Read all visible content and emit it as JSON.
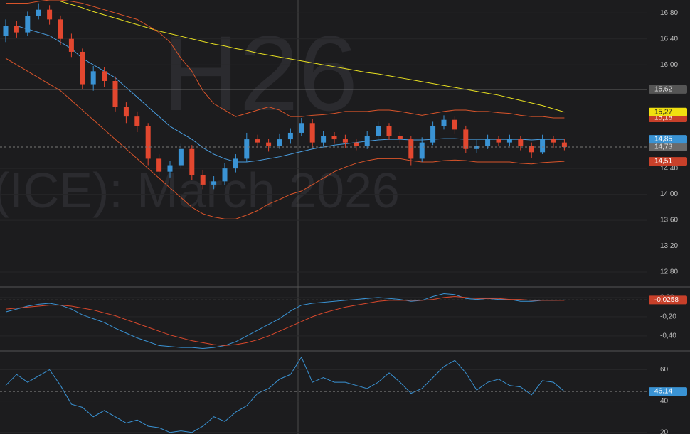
{
  "chart_data": [
    {
      "type": "candlestick",
      "watermark": [
        "H26",
        "(ICE): March 2026"
      ],
      "ylim": [
        12.57,
        17.0
      ],
      "yticks": [
        {
          "value": 12.8,
          "label": "12,80"
        },
        {
          "value": 13.2,
          "label": "13,20"
        },
        {
          "value": 13.6,
          "label": "13,60"
        },
        {
          "value": 14.0,
          "label": "14,00"
        },
        {
          "value": 14.4,
          "label": "14,40"
        },
        {
          "value": 16.0,
          "label": "16,00"
        },
        {
          "value": 16.4,
          "label": "16,40"
        },
        {
          "value": 16.8,
          "label": "16,80"
        }
      ],
      "up_color": "#3a93d4",
      "down_color": "#e2472f",
      "open": [
        16.45,
        16.6,
        16.5,
        16.75,
        16.85,
        16.7,
        16.4,
        16.2,
        15.7,
        15.9,
        15.75,
        15.35,
        15.2,
        15.05,
        14.55,
        14.35,
        14.45,
        14.7,
        14.3,
        14.15,
        14.2,
        14.4,
        14.55,
        14.85,
        14.8,
        14.75,
        14.85,
        14.95,
        15.1,
        14.8,
        14.9,
        14.85,
        14.8,
        14.75,
        14.9,
        15.05,
        14.9,
        14.85,
        14.55,
        14.8,
        15.05,
        15.15,
        15.0,
        14.7,
        14.75,
        14.85,
        14.8,
        14.85,
        14.75,
        14.65,
        14.85,
        14.8
      ],
      "high": [
        16.7,
        16.68,
        16.82,
        16.95,
        16.92,
        16.76,
        16.48,
        16.25,
        15.98,
        15.96,
        15.82,
        15.42,
        15.28,
        15.1,
        14.62,
        14.52,
        14.78,
        14.76,
        14.38,
        14.28,
        14.48,
        14.62,
        14.95,
        14.92,
        14.86,
        14.94,
        15.02,
        15.18,
        15.16,
        14.98,
        14.96,
        14.92,
        14.86,
        14.98,
        15.12,
        15.1,
        14.96,
        14.9,
        14.88,
        15.12,
        15.22,
        15.2,
        15.06,
        14.84,
        14.92,
        14.9,
        14.92,
        14.9,
        14.8,
        14.92,
        14.9,
        14.86
      ],
      "low": [
        16.35,
        16.42,
        16.45,
        16.7,
        16.62,
        16.3,
        16.12,
        15.62,
        15.6,
        15.66,
        15.28,
        15.1,
        14.96,
        14.45,
        14.28,
        14.26,
        14.4,
        14.22,
        14.08,
        14.08,
        14.14,
        14.34,
        14.5,
        14.72,
        14.66,
        14.7,
        14.78,
        14.9,
        14.72,
        14.74,
        14.78,
        14.72,
        14.68,
        14.7,
        14.84,
        14.84,
        14.78,
        14.45,
        14.5,
        14.76,
        15.0,
        14.94,
        14.64,
        14.64,
        14.7,
        14.74,
        14.74,
        14.68,
        14.56,
        14.62,
        14.72,
        14.68
      ],
      "close": [
        16.6,
        16.5,
        16.75,
        16.85,
        16.7,
        16.4,
        16.2,
        15.7,
        15.9,
        15.75,
        15.35,
        15.2,
        15.05,
        14.55,
        14.35,
        14.45,
        14.7,
        14.3,
        14.15,
        14.2,
        14.4,
        14.55,
        14.85,
        14.8,
        14.75,
        14.85,
        14.95,
        15.1,
        14.8,
        14.9,
        14.85,
        14.8,
        14.75,
        14.9,
        15.05,
        14.9,
        14.85,
        14.55,
        14.8,
        15.05,
        15.15,
        15.0,
        14.7,
        14.75,
        14.85,
        14.8,
        14.85,
        14.75,
        14.65,
        14.85,
        14.8,
        14.73
      ],
      "lines": [
        {
          "color": "#e8e020",
          "values": [
            null,
            null,
            null,
            null,
            null,
            16.98,
            16.93,
            16.88,
            16.82,
            16.77,
            16.72,
            16.67,
            16.62,
            16.57,
            16.52,
            16.48,
            16.44,
            16.4,
            16.36,
            16.32,
            16.29,
            16.25,
            16.22,
            16.18,
            16.15,
            16.12,
            16.09,
            16.06,
            16.03,
            16.0,
            15.97,
            15.94,
            15.91,
            15.88,
            15.86,
            15.83,
            15.8,
            15.77,
            15.74,
            15.71,
            15.68,
            15.65,
            15.62,
            15.59,
            15.56,
            15.53,
            15.49,
            15.45,
            15.41,
            15.37,
            15.32,
            15.27
          ]
        },
        {
          "color": "#d9542a",
          "values": [
            16.95,
            16.95,
            16.95,
            16.98,
            17.0,
            17.0,
            16.98,
            16.95,
            16.9,
            16.85,
            16.8,
            16.75,
            16.7,
            16.6,
            16.5,
            16.35,
            16.1,
            15.9,
            15.6,
            15.4,
            15.3,
            15.2,
            15.25,
            15.3,
            15.35,
            15.3,
            15.2,
            15.2,
            15.22,
            15.23,
            15.25,
            15.28,
            15.28,
            15.28,
            15.3,
            15.3,
            15.28,
            15.25,
            15.22,
            15.25,
            15.28,
            15.3,
            15.3,
            15.28,
            15.28,
            15.26,
            15.25,
            15.22,
            15.2,
            15.2,
            15.18,
            15.18
          ]
        },
        {
          "color": "#d9542a",
          "values": [
            16.1,
            16.0,
            15.9,
            15.8,
            15.7,
            15.6,
            15.45,
            15.3,
            15.15,
            15.0,
            14.85,
            14.7,
            14.55,
            14.4,
            14.25,
            14.1,
            13.95,
            13.8,
            13.7,
            13.65,
            13.62,
            13.62,
            13.68,
            13.75,
            13.85,
            13.92,
            14.0,
            14.05,
            14.15,
            14.25,
            14.35,
            14.42,
            14.48,
            14.52,
            14.55,
            14.55,
            14.55,
            14.52,
            14.5,
            14.5,
            14.52,
            14.53,
            14.52,
            14.5,
            14.5,
            14.5,
            14.5,
            14.48,
            14.47,
            14.49,
            14.5,
            14.51
          ]
        },
        {
          "color": "#4a9ee0",
          "values": [
            16.6,
            16.6,
            16.55,
            16.5,
            16.45,
            16.35,
            16.25,
            16.1,
            16.0,
            15.9,
            15.8,
            15.65,
            15.5,
            15.35,
            15.2,
            15.05,
            14.95,
            14.85,
            14.72,
            14.62,
            14.55,
            14.5,
            14.5,
            14.52,
            14.55,
            14.58,
            14.62,
            14.66,
            14.7,
            14.73,
            14.76,
            14.78,
            14.8,
            14.82,
            14.84,
            14.85,
            14.85,
            14.84,
            14.84,
            14.85,
            14.86,
            14.86,
            14.85,
            14.85,
            14.85,
            14.85,
            14.85,
            14.85,
            14.84,
            14.85,
            14.85,
            14.85
          ]
        }
      ],
      "markers": [
        {
          "value": 15.62,
          "label": "15,62",
          "color": "#555555",
          "text_color": "#e0e0e0",
          "line": "solid"
        },
        {
          "value": 14.51,
          "label": "14,51",
          "color": "#c8402a",
          "text_color": "#ffffff"
        },
        {
          "value": 14.73,
          "label": "14,73",
          "color": "#6a6a6a",
          "text_color": "#e0e0e0",
          "line": "dashed"
        },
        {
          "value": 14.85,
          "label": "14,85",
          "color": "#3a93d4",
          "text_color": "#ffffff"
        },
        {
          "value": 15.18,
          "label": "15,18",
          "color": "#c8402a",
          "text_color": "#ffffff"
        },
        {
          "value": 15.27,
          "label": "15,27",
          "color": "#f0e010",
          "text_color": "#222222"
        }
      ]
    },
    {
      "type": "line",
      "ylim": [
        -0.556,
        0.11
      ],
      "yticks": [
        {
          "value": 0,
          "label": "0,00"
        },
        {
          "value": -0.2,
          "label": "-0,20"
        },
        {
          "value": -0.4,
          "label": "-0,40"
        }
      ],
      "lines": [
        {
          "color": "#3a93d4",
          "values": [
            -0.15,
            -0.12,
            -0.09,
            -0.07,
            -0.06,
            -0.08,
            -0.12,
            -0.18,
            -0.22,
            -0.26,
            -0.32,
            -0.37,
            -0.42,
            -0.46,
            -0.5,
            -0.51,
            -0.52,
            -0.52,
            -0.53,
            -0.52,
            -0.5,
            -0.46,
            -0.4,
            -0.34,
            -0.28,
            -0.22,
            -0.14,
            -0.08,
            -0.06,
            -0.05,
            -0.04,
            -0.03,
            -0.02,
            -0.01,
            0.0,
            -0.01,
            -0.02,
            -0.04,
            -0.03,
            0.01,
            0.04,
            0.03,
            -0.01,
            -0.02,
            -0.01,
            -0.02,
            -0.02,
            -0.04,
            -0.04,
            -0.03,
            -0.03,
            -0.0258
          ]
        },
        {
          "color": "#d9482c",
          "values": [
            -0.12,
            -0.11,
            -0.1,
            -0.09,
            -0.08,
            -0.08,
            -0.09,
            -0.11,
            -0.13,
            -0.16,
            -0.19,
            -0.23,
            -0.27,
            -0.31,
            -0.35,
            -0.39,
            -0.42,
            -0.45,
            -0.47,
            -0.49,
            -0.5,
            -0.49,
            -0.47,
            -0.44,
            -0.4,
            -0.35,
            -0.3,
            -0.25,
            -0.2,
            -0.16,
            -0.13,
            -0.1,
            -0.08,
            -0.06,
            -0.04,
            -0.03,
            -0.03,
            -0.03,
            -0.03,
            -0.02,
            0.0,
            0.01,
            0.0,
            -0.01,
            -0.01,
            -0.01,
            -0.02,
            -0.02,
            -0.03,
            -0.03,
            -0.03,
            -0.03
          ]
        }
      ],
      "markers": [
        {
          "value": -0.0258,
          "label": "-0,0258",
          "color": "#c8402a",
          "text_color": "#ffffff",
          "line": "dashed"
        }
      ]
    },
    {
      "type": "line",
      "ylim": [
        19,
        72
      ],
      "yticks": [
        20,
        40,
        60
      ],
      "lines": [
        {
          "color": "#3a93d4",
          "values": [
            50,
            57,
            52,
            56,
            60,
            50,
            38,
            36,
            30,
            34,
            30,
            26,
            28,
            24,
            23,
            20,
            21,
            20,
            24,
            30,
            27,
            33,
            37,
            45,
            48,
            54,
            57,
            68,
            52,
            55,
            52,
            52,
            50,
            48,
            52,
            58,
            52,
            45,
            48,
            55,
            62,
            66,
            58,
            47,
            52,
            54,
            50,
            49,
            44,
            53,
            52,
            46.14
          ]
        }
      ],
      "markers": [
        {
          "value": 46.14,
          "color": "#3a93d4",
          "text_color": "#ffffff",
          "line": "dashed"
        }
      ]
    }
  ]
}
